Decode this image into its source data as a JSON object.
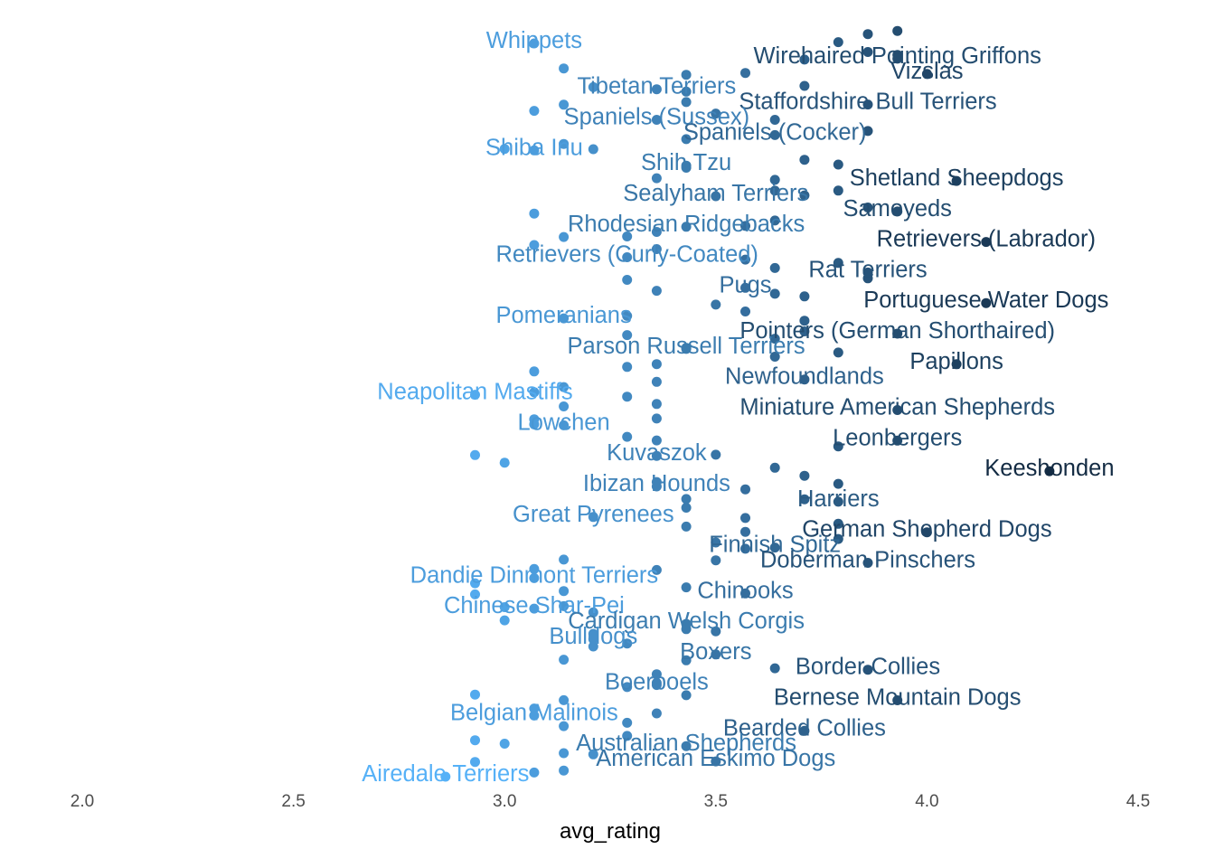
{
  "chart_data": {
    "type": "scatter",
    "title": "",
    "xlabel": "avg_rating",
    "ylabel": "",
    "xlim": [
      2.0,
      4.5
    ],
    "grid": false,
    "legend": "none",
    "x_ticks": [
      "2.0",
      "2.5",
      "3.0",
      "3.5",
      "4.0",
      "4.5"
    ],
    "color_scale": {
      "low": "#56b1f7",
      "high": "#132b43",
      "low_value": 2.86,
      "high_value": 4.29
    },
    "labeled_points": [
      {
        "label": "Whippets",
        "x": 3.07
      },
      {
        "label": "Wirehaired Pointing Griffons",
        "x": 3.93
      },
      {
        "label": "Vizslas",
        "x": 4.0
      },
      {
        "label": "Tibetan Terriers",
        "x": 3.36
      },
      {
        "label": "Staffordshire Bull Terriers",
        "x": 3.86
      },
      {
        "label": "Spaniels (Sussex)",
        "x": 3.36
      },
      {
        "label": "Spaniels (Cocker)",
        "x": 3.64
      },
      {
        "label": "Shiba Inu",
        "x": 3.07
      },
      {
        "label": "Shih Tzu",
        "x": 3.43
      },
      {
        "label": "Shetland Sheepdogs",
        "x": 4.07
      },
      {
        "label": "Sealyham Terriers",
        "x": 3.5
      },
      {
        "label": "Samoyeds",
        "x": 3.93
      },
      {
        "label": "Rhodesian Ridgebacks",
        "x": 3.43
      },
      {
        "label": "Retrievers (Labrador)",
        "x": 4.14
      },
      {
        "label": "Retrievers (Curly-Coated)",
        "x": 3.29
      },
      {
        "label": "Rat Terriers",
        "x": 3.86
      },
      {
        "label": "Pugs",
        "x": 3.57
      },
      {
        "label": "Portuguese Water Dogs",
        "x": 4.14
      },
      {
        "label": "Pomeranians",
        "x": 3.14
      },
      {
        "label": "Pointers (German Shorthaired)",
        "x": 3.93
      },
      {
        "label": "Parson Russell Terriers",
        "x": 3.43
      },
      {
        "label": "Papillons",
        "x": 4.07
      },
      {
        "label": "Newfoundlands",
        "x": 3.71
      },
      {
        "label": "Neapolitan Mastiffs",
        "x": 2.93
      },
      {
        "label": "Miniature American Shepherds",
        "x": 3.93
      },
      {
        "label": "Lowchen",
        "x": 3.14
      },
      {
        "label": "Leonbergers",
        "x": 3.93
      },
      {
        "label": "Kuvaszok",
        "x": 3.36
      },
      {
        "label": "Keeshonden",
        "x": 4.29
      },
      {
        "label": "Ibizan Hounds",
        "x": 3.36
      },
      {
        "label": "Harriers",
        "x": 3.79
      },
      {
        "label": "Great Pyrenees",
        "x": 3.21
      },
      {
        "label": "German Shepherd Dogs",
        "x": 4.0
      },
      {
        "label": "Finnish Spitz",
        "x": 3.64
      },
      {
        "label": "Doberman Pinschers",
        "x": 3.86
      },
      {
        "label": "Dandie Dinmont Terriers",
        "x": 3.07
      },
      {
        "label": "Chinooks",
        "x": 3.57
      },
      {
        "label": "Chinese Shar-Pei",
        "x": 3.07
      },
      {
        "label": "Cardigan Welsh Corgis",
        "x": 3.43
      },
      {
        "label": "Bulldogs",
        "x": 3.21
      },
      {
        "label": "Boxers",
        "x": 3.5
      },
      {
        "label": "Border Collies",
        "x": 3.86
      },
      {
        "label": "Boerboels",
        "x": 3.36
      },
      {
        "label": "Bernese Mountain Dogs",
        "x": 3.93
      },
      {
        "label": "Belgian Malinois",
        "x": 3.07
      },
      {
        "label": "Bearded Collies",
        "x": 3.71
      },
      {
        "label": "Australian Shepherds",
        "x": 3.43
      },
      {
        "label": "American Eskimo Dogs",
        "x": 3.5
      },
      {
        "label": "Airedale Terriers",
        "x": 2.86
      }
    ],
    "unlabeled_x": [
      3.93,
      3.86,
      3.79,
      3.86,
      3.93,
      3.71,
      3.14,
      3.43,
      3.57,
      3.21,
      3.71,
      3.43,
      3.14,
      3.43,
      3.07,
      3.5,
      3.64,
      3.86,
      3.43,
      3.14,
      3.21,
      3.0,
      3.71,
      3.79,
      3.43,
      3.64,
      3.36,
      3.64,
      3.79,
      3.71,
      3.86,
      3.07,
      3.64,
      3.57,
      3.36,
      3.14,
      3.29,
      3.07,
      3.36,
      3.57,
      3.79,
      3.64,
      3.86,
      3.29,
      3.36,
      3.64,
      3.71,
      3.5,
      3.57,
      3.29,
      3.71,
      3.71,
      3.29,
      3.64,
      3.43,
      3.79,
      3.64,
      3.36,
      3.29,
      3.07,
      3.36,
      3.14,
      3.07,
      3.29,
      3.36,
      3.14,
      3.36,
      3.07,
      3.07,
      3.29,
      3.36,
      3.79,
      2.93,
      3.5,
      3.0,
      3.64,
      3.71,
      3.36,
      3.79,
      3.57,
      3.43,
      3.71,
      3.43,
      3.57,
      3.79,
      3.43,
      3.57,
      3.79,
      3.5,
      3.57,
      3.14,
      3.5,
      3.07,
      3.36,
      2.93,
      3.43,
      3.14,
      2.93,
      3.14,
      3.0,
      3.21,
      3.0,
      3.43,
      3.5,
      3.21,
      3.29,
      3.21,
      3.43,
      3.14,
      3.64,
      3.36,
      3.36,
      3.29,
      3.43,
      2.93,
      3.14,
      3.07,
      3.36,
      3.29,
      3.14,
      3.29,
      2.93,
      3.0,
      3.14,
      3.21,
      2.93,
      3.14,
      3.07
    ]
  }
}
